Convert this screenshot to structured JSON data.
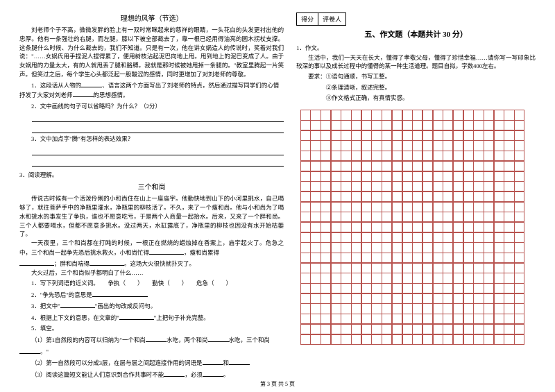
{
  "left": {
    "title1": "理想的风筝（节选）",
    "p1": "刘老师个子不高，微微发胖的脸上有一双时常眯起来的慈祥的眼睛，一头花白的头发更衬出他的忠厚。他有一条强壮的右腿，而左腿，膝以下被全部截去了，靠一根已经用得油亮的圆木拐杖支撑。这条腿什么时候、为什么截去的，我们不知道。只是有一次，他在讲女娲造人的传说时，笑着对我们说：\"……女娲氏用手捏泥人捏得累了，便用树枝沾起泥巴向地上甩。甩到地上的泥巴变成了人。由于女娲甩的力量太大，有的人就甩丢了腿和胳膊。我就是那时候被她甩掉一条腿的。\"教室里腾起一片笑声。但笑过之后，每个学生心头都泛起一股酸涩的感情，同时更增加了对刘老师的尊敬。",
    "q1a": "1．这段话从人物的",
    "q1b": "、语言这两个方面写出了刘老师的特点，然后通过描写同学们的心情抒发了大家对刘老师",
    "q1c": "的思想感情。",
    "q2": "2．文中画线的句子可以省略吗？为什么？（2分）",
    "q3": "3．文中加点字\"腾\"有怎样的表达效果？",
    "section3": "3．阅读理解。",
    "title2": "三个和尚",
    "p2a": "传说古时候有一个活泼伶俐的小和尚住在山上一座庙宇。他勤快地到山下的小河里挑水，自己喝够了，就往菩萨手中的净瓶里灌水，净瓶里的柳枝活了。不久，来了一个瘦和尚。他与小和尚为了喝水和挑水的事发生了争执，谁也不愿意吃亏，于是两个人商量一起抬水。后来，又来了一个胖和尚。三个人都要喝水，但都不愿意多挑水。没过两天，水缸露底了，净瓶里的柳枝也因没有水开始枯萎了。",
    "p2b": "一天夜里，三个和尚都在打盹的时候，一根正在燃烧的蜡烛掉在香案上，庙宇起火了。危急之中，三个和尚一起争先恐后挑水救火，小和尚忙得",
    "p2c": "，瘦和尚累得",
    "p2d": "；胖和尚喘得",
    "p2e": "。这场大火很快就扑灭了。",
    "p2f": "大火过后，三个和尚似乎都明白了什么……",
    "sq1": "1．写下列词语的近义词。　　争执（　　）　　勤快（　　）　　危急（　　）",
    "sq2": "2．\"争先恐后\"的意思是",
    "sq3": "3．把文中\"",
    "sq3b": "\"画出的句改成反问句。",
    "sq4": "4．根据上下文的意思，在文章的\"",
    "sq4b": "\"上把句子补充完整。",
    "sq5": "5．填空。",
    "sq5a": "（1）第1自然段的内容可以归纳为\"一个和尚",
    "sq5aa": "水吃，两个和尚",
    "sq5ab": "水吃，三个和尚",
    "sq5ac": "。\"",
    "sq5b": "（2）第一自然段可以分成3层，在层与层之间起连接作用的词语是",
    "sq5ba": "和",
    "sq5c": "（3）阅读这篇短文能让人们意识到合作共事时不能",
    "sq5ca": "，必须",
    "sq5cb": "。"
  },
  "right": {
    "score_label1": "得分",
    "score_label2": "评卷人",
    "section_title": "五、作文题（本题共计 30 分）",
    "q1": "1．作文。",
    "p1": "生活中，我们一天天在长大，懂得了孝敬父母，懂得了珍惜幸福……请你写一写印象比较深的事以及成长过程中的懂得的某一种生活道理。题目自拟，字数400左右。",
    "req_label": "要求：",
    "req1": "①语句通顺，书写工整。",
    "req2": "②条理清晰，叙述完整。",
    "req3": "③作文格式正确，有真情实感。"
  },
  "grid": {
    "rows": 23,
    "cols": 22,
    "border_color": "#b85450"
  },
  "footer": "第 3 页 共 5 页"
}
